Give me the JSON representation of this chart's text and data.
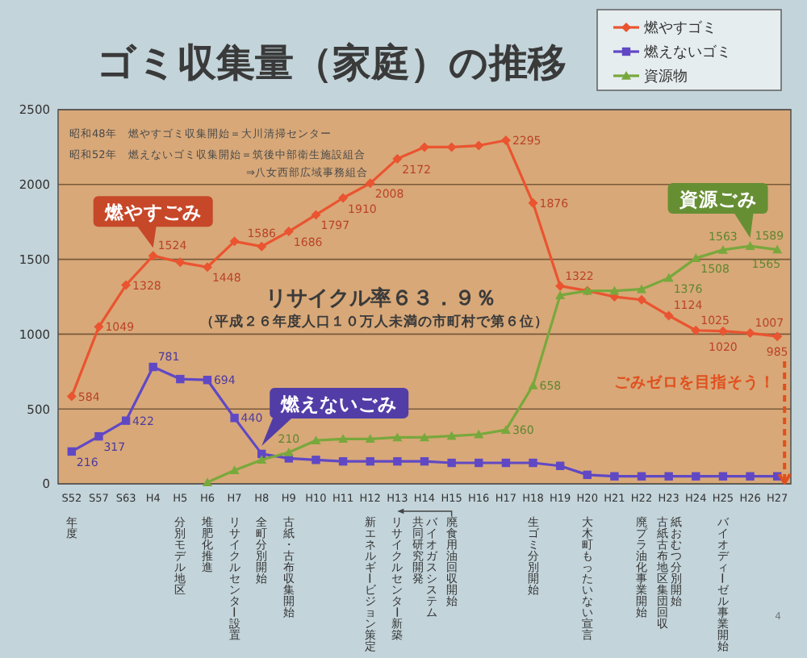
{
  "chart_data": {
    "type": "line",
    "title": "ゴミ収集量（家庭）の推移",
    "xlabel": "年度",
    "categories": [
      "S52",
      "S57",
      "S63",
      "H4",
      "H5",
      "H6",
      "H7",
      "H8",
      "H9",
      "H10",
      "H11",
      "H12",
      "H13",
      "H14",
      "H15",
      "H16",
      "H17",
      "H18",
      "H19",
      "H20",
      "H21",
      "H22",
      "H23",
      "H24",
      "H25",
      "H26",
      "H27"
    ],
    "series": [
      {
        "name": "燃やすゴミ",
        "color": "#ea5430",
        "marker": "diamond",
        "values": [
          584,
          1049,
          1328,
          1524,
          1480,
          1448,
          1620,
          1586,
          1686,
          1797,
          1910,
          2008,
          2172,
          2250,
          2250,
          2260,
          2295,
          1876,
          1322,
          1290,
          1250,
          1230,
          1124,
          1025,
          1020,
          1007,
          985
        ],
        "value_labels": [
          "584",
          "1049",
          "1328",
          "1524",
          null,
          "1448",
          null,
          "1586",
          "1686",
          "1797",
          "1910",
          "2008",
          "2172",
          null,
          null,
          null,
          "2295",
          "1876",
          "1322",
          null,
          null,
          null,
          "1124",
          "1025",
          "1020",
          "1007",
          "985"
        ]
      },
      {
        "name": "燃えないゴミ",
        "color": "#6048c4",
        "marker": "square",
        "values": [
          216,
          317,
          422,
          781,
          700,
          694,
          440,
          200,
          170,
          160,
          150,
          150,
          150,
          150,
          140,
          140,
          140,
          140,
          120,
          60,
          50,
          50,
          50,
          50,
          50,
          50,
          50
        ],
        "value_labels": [
          "216",
          "317",
          "422",
          "781",
          null,
          "694",
          "440",
          null,
          null,
          null,
          null,
          null,
          null,
          null,
          null,
          null,
          null,
          null,
          null,
          null,
          null,
          null,
          null,
          null,
          null,
          null,
          null
        ]
      },
      {
        "name": "資源物",
        "color": "#78a83c",
        "marker": "triangle",
        "values": [
          null,
          null,
          null,
          null,
          null,
          10,
          90,
          160,
          210,
          290,
          300,
          300,
          310,
          310,
          320,
          330,
          360,
          658,
          1260,
          1290,
          1290,
          1300,
          1376,
          1508,
          1563,
          1589,
          1565
        ],
        "value_labels": [
          null,
          null,
          null,
          null,
          null,
          null,
          null,
          null,
          "210",
          null,
          null,
          null,
          null,
          null,
          null,
          null,
          "360",
          "658",
          null,
          null,
          null,
          null,
          "1376",
          "1508",
          "1563",
          "1589",
          "1565"
        ]
      }
    ],
    "ylim": [
      0,
      2500
    ],
    "yticks": [
      0,
      500,
      1000,
      1500,
      2000,
      2500
    ],
    "grid": "y",
    "legend": "top right",
    "annotations": [
      {
        "text": "燃やすごみ",
        "x": "H4",
        "y": 1524
      },
      {
        "text": "燃えないごみ",
        "x": "H8",
        "y": 200
      },
      {
        "text": "資源ごみ",
        "x": "H26",
        "y": 1589
      },
      "昭和48年　燃やすゴミ収集開始＝大川清掃センター",
      "昭和52年　燃えないゴミ収集開始＝筑後中部衛生施設組合",
      "⇒八女西部広域事務組合",
      "リサイクル率６３．９％",
      "（平成２６年度人口１０万人未満の市町村で第６位）",
      {
        "text": "ごみゼロを目指そう！",
        "x": "H27",
        "y": 0
      },
      "4",
      "分別モデル地区",
      "堆肥化推進",
      "リサイクルセンター設置",
      "全町分別開始",
      "古紙・古布収集開始",
      "新エネルギービジョン策定",
      "リサイクルセンター新築",
      "バイオガスシステム",
      "共同研究開発",
      "廃食用油回収開始",
      "生ゴミ分別開始",
      "大木町もったいない宣言",
      "廃プラ油化事業開始",
      "紙おむつ分別開始",
      "古紙古布地区集団回収",
      "バイオディーゼル事業開始"
    ]
  }
}
